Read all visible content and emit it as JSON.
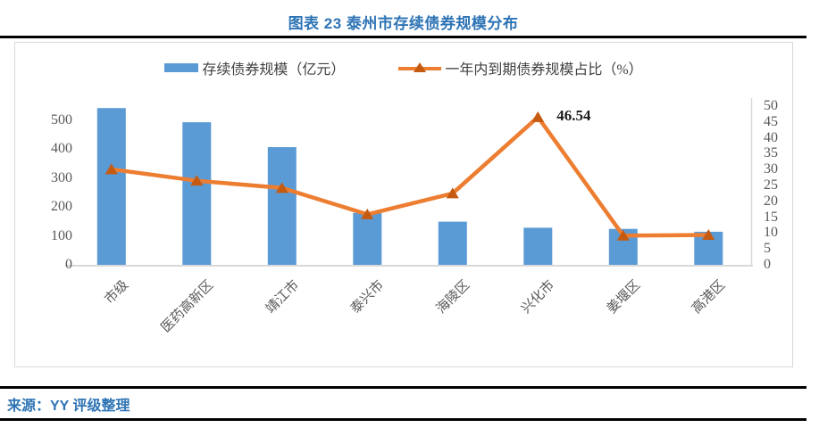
{
  "title": "图表 23 泰州市存续债券规模分布",
  "source": "来源：YY 评级整理",
  "colors": {
    "bar": "#5B9BD5",
    "line": "#ED7D31",
    "marker": "#C55A11",
    "heading_blue": "#2E74B5",
    "axis_text": "#595959",
    "panel_border": "#D9D9D9",
    "rule_black": "#000000"
  },
  "legend": {
    "items": [
      {
        "label": "存续债券规模（亿元）",
        "type": "bar"
      },
      {
        "label": "一年内到期债券规模占比（%）",
        "type": "line"
      }
    ]
  },
  "chart_data": {
    "type": "bar",
    "subtype": "combo-bar-line-dual-axis",
    "categories": [
      "市级",
      "医药高新区",
      "靖江市",
      "泰兴市",
      "海陵区",
      "兴化市",
      "姜堰区",
      "高港区"
    ],
    "series": [
      {
        "name": "存续债券规模（亿元）",
        "type": "bar",
        "axis": "left",
        "color": "#5B9BD5",
        "values": [
          541,
          492,
          406,
          179,
          149,
          128,
          124,
          114
        ]
      },
      {
        "name": "一年内到期债券规模占比（%）",
        "type": "line",
        "axis": "right",
        "color": "#ED7D31",
        "marker": "triangle",
        "marker_color": "#C55A11",
        "values": [
          30.1,
          26.5,
          24.2,
          15.9,
          22.5,
          46.54,
          9.2,
          9.4
        ]
      }
    ],
    "left_axis": {
      "label": "",
      "min": 0,
      "max": 550,
      "ticks": [
        0,
        100,
        200,
        300,
        400,
        500
      ]
    },
    "right_axis": {
      "label": "",
      "min": 0,
      "max": 50,
      "ticks": [
        0,
        5,
        10,
        15,
        20,
        25,
        30,
        35,
        40,
        45,
        50
      ]
    },
    "annotation": {
      "text": "46.54",
      "category": "兴化市",
      "series_index": 1,
      "value": 46.54
    },
    "grid": false,
    "legend_position": "top"
  }
}
